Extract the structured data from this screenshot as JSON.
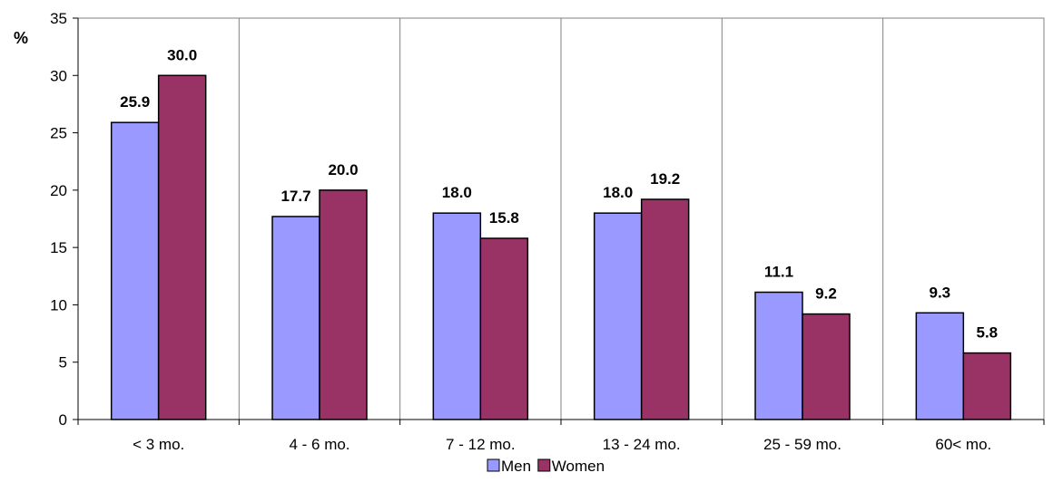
{
  "chart_data": {
    "type": "bar",
    "ylabel": "%",
    "ylim": [
      0,
      35
    ],
    "yticks": [
      0,
      5,
      10,
      15,
      20,
      25,
      30,
      35
    ],
    "categories": [
      "< 3 mo.",
      "4 - 6 mo.",
      "7 - 12 mo.",
      "13 - 24 mo.",
      "25 - 59 mo.",
      "60< mo."
    ],
    "series": [
      {
        "name": "Men",
        "values": [
          25.9,
          17.7,
          18.0,
          18.0,
          11.1,
          9.3
        ],
        "color": "#9999ff"
      },
      {
        "name": "Women",
        "values": [
          30.0,
          20.0,
          15.8,
          19.2,
          9.2,
          5.8
        ],
        "color": "#993366"
      }
    ],
    "value_format": "0.0",
    "grid": "vertical",
    "legend": "bottom"
  }
}
